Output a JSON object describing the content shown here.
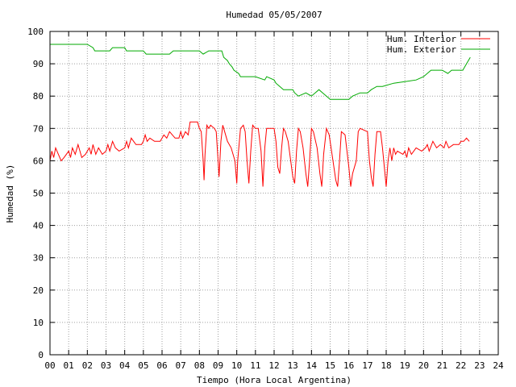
{
  "chart_data": {
    "type": "line",
    "title": "Humedad 05/05/2007",
    "xlabel": "Tiempo (Hora Local Argentina)",
    "ylabel": "Humedad (%)",
    "xlim": [
      0,
      24
    ],
    "ylim": [
      0,
      100
    ],
    "x_tick_labels": [
      "00",
      "01",
      "02",
      "03",
      "04",
      "05",
      "06",
      "07",
      "08",
      "09",
      "10",
      "11",
      "12",
      "13",
      "14",
      "15",
      "16",
      "17",
      "18",
      "19",
      "20",
      "21",
      "22",
      "23",
      "24"
    ],
    "y_tick_labels": [
      "0",
      "10",
      "20",
      "30",
      "40",
      "50",
      "60",
      "70",
      "80",
      "90",
      "100"
    ],
    "grid": true,
    "legend_position": "top-right",
    "series": [
      {
        "name": "Hum. Interior",
        "color": "#ff0000",
        "points": [
          [
            0.0,
            60
          ],
          [
            0.1,
            63
          ],
          [
            0.2,
            61
          ],
          [
            0.3,
            64
          ],
          [
            0.45,
            62
          ],
          [
            0.6,
            60
          ],
          [
            0.75,
            61
          ],
          [
            1.0,
            63
          ],
          [
            1.1,
            61
          ],
          [
            1.2,
            64
          ],
          [
            1.35,
            62
          ],
          [
            1.5,
            65
          ],
          [
            1.7,
            61
          ],
          [
            1.9,
            62
          ],
          [
            2.1,
            64
          ],
          [
            2.2,
            62
          ],
          [
            2.3,
            65
          ],
          [
            2.45,
            62
          ],
          [
            2.6,
            64
          ],
          [
            2.8,
            62
          ],
          [
            3.0,
            63
          ],
          [
            3.1,
            65
          ],
          [
            3.2,
            63
          ],
          [
            3.35,
            66
          ],
          [
            3.5,
            64
          ],
          [
            3.7,
            63
          ],
          [
            4.0,
            64
          ],
          [
            4.1,
            66
          ],
          [
            4.2,
            64
          ],
          [
            4.35,
            67
          ],
          [
            4.6,
            65
          ],
          [
            4.9,
            65
          ],
          [
            5.0,
            66
          ],
          [
            5.1,
            68
          ],
          [
            5.2,
            66
          ],
          [
            5.35,
            67
          ],
          [
            5.6,
            66
          ],
          [
            5.9,
            66
          ],
          [
            6.0,
            67
          ],
          [
            6.1,
            68
          ],
          [
            6.25,
            67
          ],
          [
            6.4,
            69
          ],
          [
            6.7,
            67
          ],
          [
            6.9,
            67
          ],
          [
            7.0,
            69
          ],
          [
            7.1,
            67
          ],
          [
            7.25,
            69
          ],
          [
            7.4,
            68
          ],
          [
            7.5,
            72
          ],
          [
            7.9,
            72
          ],
          [
            8.0,
            70
          ],
          [
            8.1,
            69
          ],
          [
            8.2,
            60
          ],
          [
            8.25,
            54
          ],
          [
            8.3,
            62
          ],
          [
            8.4,
            71
          ],
          [
            8.5,
            70
          ],
          [
            8.6,
            71
          ],
          [
            8.8,
            70
          ],
          [
            8.9,
            69
          ],
          [
            9.0,
            60
          ],
          [
            9.05,
            55
          ],
          [
            9.15,
            66
          ],
          [
            9.25,
            71
          ],
          [
            9.3,
            70
          ],
          [
            9.5,
            66
          ],
          [
            9.7,
            64
          ],
          [
            9.9,
            60
          ],
          [
            10.0,
            53
          ],
          [
            10.05,
            60
          ],
          [
            10.2,
            70
          ],
          [
            10.35,
            71
          ],
          [
            10.45,
            69
          ],
          [
            10.55,
            60
          ],
          [
            10.65,
            53
          ],
          [
            10.75,
            63
          ],
          [
            10.85,
            71
          ],
          [
            11.0,
            70
          ],
          [
            11.15,
            70
          ],
          [
            11.3,
            63
          ],
          [
            11.4,
            52
          ],
          [
            11.5,
            64
          ],
          [
            11.6,
            70
          ],
          [
            12.0,
            70
          ],
          [
            12.1,
            66
          ],
          [
            12.2,
            58
          ],
          [
            12.3,
            56
          ],
          [
            12.4,
            64
          ],
          [
            12.5,
            70
          ],
          [
            12.6,
            69
          ],
          [
            12.75,
            66
          ],
          [
            13.0,
            55
          ],
          [
            13.1,
            53
          ],
          [
            13.2,
            63
          ],
          [
            13.3,
            70
          ],
          [
            13.4,
            69
          ],
          [
            13.55,
            64
          ],
          [
            13.7,
            56
          ],
          [
            13.8,
            52
          ],
          [
            13.9,
            60
          ],
          [
            14.0,
            70
          ],
          [
            14.1,
            69
          ],
          [
            14.3,
            64
          ],
          [
            14.45,
            56
          ],
          [
            14.55,
            52
          ],
          [
            14.65,
            62
          ],
          [
            14.8,
            70
          ],
          [
            14.95,
            68
          ],
          [
            15.15,
            60
          ],
          [
            15.3,
            54
          ],
          [
            15.4,
            52
          ],
          [
            15.5,
            60
          ],
          [
            15.6,
            69
          ],
          [
            15.8,
            68
          ],
          [
            16.0,
            58
          ],
          [
            16.1,
            52
          ],
          [
            16.2,
            56
          ],
          [
            16.4,
            60
          ],
          [
            16.5,
            69
          ],
          [
            16.6,
            70
          ],
          [
            17.0,
            69
          ],
          [
            17.1,
            60
          ],
          [
            17.2,
            55
          ],
          [
            17.3,
            52
          ],
          [
            17.4,
            62
          ],
          [
            17.5,
            69
          ],
          [
            17.7,
            69
          ],
          [
            17.8,
            64
          ],
          [
            17.9,
            58
          ],
          [
            18.0,
            52
          ],
          [
            18.1,
            60
          ],
          [
            18.2,
            64
          ],
          [
            18.3,
            60
          ],
          [
            18.4,
            64
          ],
          [
            18.5,
            62
          ],
          [
            18.6,
            63
          ],
          [
            18.9,
            62
          ],
          [
            19.0,
            63
          ],
          [
            19.1,
            61
          ],
          [
            19.2,
            64
          ],
          [
            19.35,
            62
          ],
          [
            19.6,
            64
          ],
          [
            19.9,
            63
          ],
          [
            20.1,
            64
          ],
          [
            20.2,
            65
          ],
          [
            20.3,
            63
          ],
          [
            20.5,
            66
          ],
          [
            20.7,
            64
          ],
          [
            20.9,
            65
          ],
          [
            21.1,
            64
          ],
          [
            21.2,
            66
          ],
          [
            21.35,
            64
          ],
          [
            21.6,
            65
          ],
          [
            21.9,
            65
          ],
          [
            22.0,
            66
          ],
          [
            22.15,
            66
          ],
          [
            22.3,
            67
          ],
          [
            22.45,
            66
          ]
        ]
      },
      {
        "name": "Hum. Exterior",
        "color": "#00aa00",
        "points": [
          [
            0.0,
            96
          ],
          [
            2.0,
            96
          ],
          [
            2.3,
            95
          ],
          [
            2.4,
            94
          ],
          [
            3.2,
            94
          ],
          [
            3.35,
            95
          ],
          [
            4.0,
            95
          ],
          [
            4.1,
            94
          ],
          [
            5.0,
            94
          ],
          [
            5.15,
            93
          ],
          [
            6.4,
            93
          ],
          [
            6.6,
            94
          ],
          [
            7.0,
            94
          ],
          [
            8.0,
            94
          ],
          [
            8.2,
            93
          ],
          [
            8.5,
            94
          ],
          [
            9.2,
            94
          ],
          [
            9.3,
            92
          ],
          [
            9.5,
            91
          ],
          [
            9.6,
            90
          ],
          [
            9.75,
            89
          ],
          [
            9.85,
            88
          ],
          [
            10.1,
            87
          ],
          [
            10.2,
            86
          ],
          [
            11.0,
            86
          ],
          [
            11.5,
            85
          ],
          [
            11.6,
            86
          ],
          [
            12.0,
            85
          ],
          [
            12.1,
            84
          ],
          [
            12.3,
            83
          ],
          [
            12.5,
            82
          ],
          [
            13.0,
            82
          ],
          [
            13.1,
            81
          ],
          [
            13.3,
            80
          ],
          [
            13.7,
            81
          ],
          [
            14.0,
            80
          ],
          [
            14.4,
            82
          ],
          [
            14.6,
            81
          ],
          [
            14.8,
            80
          ],
          [
            15.0,
            79
          ],
          [
            16.0,
            79
          ],
          [
            16.2,
            80
          ],
          [
            16.6,
            81
          ],
          [
            17.0,
            81
          ],
          [
            17.2,
            82
          ],
          [
            17.5,
            83
          ],
          [
            17.8,
            83
          ],
          [
            18.4,
            84
          ],
          [
            19.6,
            85
          ],
          [
            20.0,
            86
          ],
          [
            20.4,
            88
          ],
          [
            21.0,
            88
          ],
          [
            21.3,
            87
          ],
          [
            21.5,
            88
          ],
          [
            22.1,
            88
          ],
          [
            22.3,
            90
          ],
          [
            22.5,
            92
          ]
        ]
      }
    ]
  }
}
